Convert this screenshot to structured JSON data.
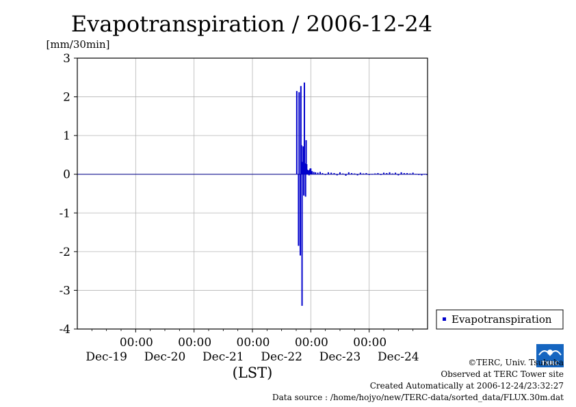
{
  "chart_data": {
    "type": "bar",
    "title": "Evapotranspiration / 2006-12-24",
    "ylabel": "[mm/30min]",
    "xlabel": "(LST)",
    "ylim": [
      -4,
      3
    ],
    "yticks": [
      "3",
      "2",
      "1",
      "0",
      "-1",
      "-2",
      "-3",
      "-4"
    ],
    "ytick_values": [
      3,
      2,
      1,
      0,
      -1,
      -2,
      -3,
      -4
    ],
    "xlim_days": [
      0,
      6
    ],
    "xtick_time_labels": [
      "00:00",
      "00:00",
      "00:00",
      "00:00",
      "00:00"
    ],
    "xtick_date_labels": [
      "Dec-19",
      "Dec-20",
      "Dec-21",
      "Dec-22",
      "Dec-23",
      "Dec-24"
    ],
    "grid": true,
    "legend_position": "right",
    "series": [
      {
        "name": "Evapotranspiration",
        "color": "#0000cc",
        "x": [
          3.76,
          3.79,
          3.8,
          3.82,
          3.83,
          3.84,
          3.85,
          3.86,
          3.87,
          3.88,
          3.89,
          3.9,
          3.91,
          3.92,
          3.93,
          3.94,
          3.95,
          3.96,
          3.97,
          3.98,
          3.99,
          4.0,
          4.02,
          4.05,
          4.08,
          4.12,
          4.16,
          4.2,
          4.25,
          4.3,
          4.35,
          4.4,
          4.45,
          4.5,
          4.55,
          4.6,
          4.65,
          4.7,
          4.75,
          4.8,
          4.85,
          4.9,
          4.95,
          5.0,
          5.05,
          5.1,
          5.15,
          5.2,
          5.25,
          5.3,
          5.35,
          5.4,
          5.45,
          5.5,
          5.55,
          5.6,
          5.65,
          5.7,
          5.75,
          5.8,
          5.85,
          5.9,
          5.95,
          5.99
        ],
        "y": [
          2.15,
          -1.85,
          2.12,
          -2.1,
          2.28,
          0.75,
          -3.4,
          0.32,
          0.72,
          -0.55,
          2.37,
          0.28,
          -0.58,
          0.88,
          0.26,
          0.12,
          0.05,
          0.1,
          -0.03,
          0.12,
          0.15,
          0.15,
          0.08,
          0.06,
          0.05,
          0.04,
          0.06,
          0.03,
          -0.02,
          0.05,
          0.04,
          0.03,
          -0.03,
          0.05,
          0.02,
          -0.04,
          0.05,
          0.03,
          0.02,
          -0.03,
          0.04,
          0.02,
          0.03,
          -0.02,
          0.01,
          0.02,
          0.03,
          -0.02,
          0.04,
          0.03,
          0.05,
          0.02,
          0.04,
          -0.03,
          0.05,
          0.03,
          0.03,
          0.02,
          0.04,
          0.01,
          -0.02,
          -0.03,
          0.01,
          -0.02
        ]
      }
    ]
  },
  "credits": {
    "copyright": "©TERC, Univ. Tsukuba",
    "observed": "Observed at TERC Tower site",
    "created": "Created Automatically at 2006-12-24/23:32:27",
    "source": "Data source : /home/hojyo/new/TERC-data/sorted_data/FLUX.30m.dat"
  },
  "logo": {
    "text": "TERC",
    "color": "#1565c0"
  }
}
